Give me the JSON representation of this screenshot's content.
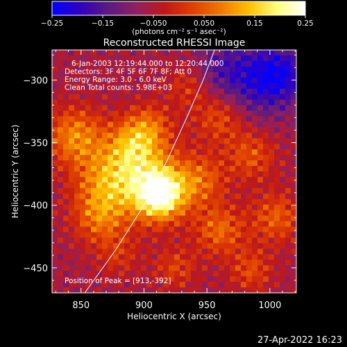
{
  "chart_data": {
    "type": "heatmap",
    "title": "Reconstructed RHESSI Image",
    "xlabel": "Heliocentric X (arcsec)",
    "ylabel": "Heliocentric Y (arcsec)",
    "xlim": [
      827,
      1021
    ],
    "ylim": [
      -470,
      -276
    ],
    "x_ticks": [
      850,
      900,
      950,
      1000
    ],
    "y_ticks": [
      -300,
      -350,
      -400,
      -450
    ],
    "x_tick_labels": [
      "850",
      "900",
      "950",
      "1000"
    ],
    "y_tick_labels": [
      "−300",
      "−350",
      "−400",
      "−450"
    ],
    "colorbar": {
      "range": [
        -0.25,
        0.25
      ],
      "ticks": [
        -0.25,
        -0.15,
        -0.05,
        0.05,
        0.15,
        0.25
      ],
      "tick_labels": [
        "−0.25",
        "−0.15",
        "−0.050",
        "0.050",
        "0.15",
        "0.25"
      ],
      "unit_label": "(photons cm⁻² s⁻¹ asec⁻²)",
      "colormap": [
        "#0000ff",
        "#3000c0",
        "#5a1a80",
        "#902060",
        "#c01818",
        "#e04000",
        "#f07800",
        "#ffc000",
        "#ffff80",
        "#ffffff"
      ]
    },
    "info_lines": [
      "6-Jan-2003 12:19:44.000 to 12:20:44.000",
      "Detectors: 3F 4F 5F 6F 7F 8F; Att 0",
      "Energy Range: 3.0 - 6.0 keV",
      "Clean     Total counts: 5.98E+03"
    ],
    "peak_label": "Position of Peak = [913,-392]",
    "peak": {
      "x": 913,
      "y": -392
    },
    "limb_curve": {
      "x": [
        853,
        878,
        900,
        918,
        934,
        947,
        956
      ],
      "y": [
        -470,
        -435,
        -400,
        -365,
        -330,
        -300,
        -276
      ]
    },
    "blobs": [
      {
        "x": 913,
        "y": -392,
        "amp": 0.27,
        "r": 14
      },
      {
        "x": 900,
        "y": -375,
        "amp": 0.14,
        "r": 22
      },
      {
        "x": 892,
        "y": -350,
        "amp": 0.13,
        "r": 14
      },
      {
        "x": 905,
        "y": -335,
        "amp": 0.08,
        "r": 12
      },
      {
        "x": 845,
        "y": -345,
        "amp": 0.15,
        "r": 16
      },
      {
        "x": 870,
        "y": -380,
        "amp": 0.13,
        "r": 18
      },
      {
        "x": 865,
        "y": -410,
        "amp": 0.12,
        "r": 15
      },
      {
        "x": 960,
        "y": -330,
        "amp": 0.1,
        "r": 14
      },
      {
        "x": 945,
        "y": -380,
        "amp": 0.11,
        "r": 14
      },
      {
        "x": 960,
        "y": -420,
        "amp": 0.12,
        "r": 14
      },
      {
        "x": 985,
        "y": -360,
        "amp": 0.1,
        "r": 14
      },
      {
        "x": 1005,
        "y": -410,
        "amp": 0.11,
        "r": 14
      },
      {
        "x": 985,
        "y": -452,
        "amp": 0.09,
        "r": 12
      },
      {
        "x": 925,
        "y": -450,
        "amp": 0.08,
        "r": 12
      },
      {
        "x": 880,
        "y": -440,
        "amp": 0.06,
        "r": 12
      },
      {
        "x": 935,
        "y": -305,
        "amp": 0.07,
        "r": 12
      }
    ],
    "negative_blobs": [
      {
        "x": 990,
        "y": -300,
        "amp": 0.12,
        "r": 22
      },
      {
        "x": 1010,
        "y": -295,
        "amp": 0.1,
        "r": 15
      },
      {
        "x": 960,
        "y": -290,
        "amp": 0.06,
        "r": 16
      }
    ],
    "background": -0.06
  },
  "footer": {
    "timestamp": "27-Apr-2022 16:23"
  }
}
